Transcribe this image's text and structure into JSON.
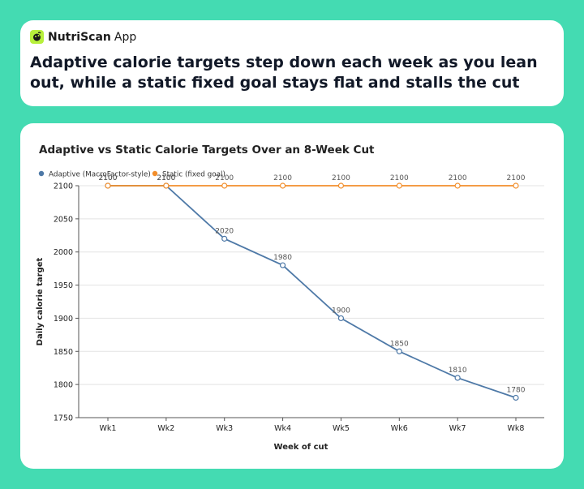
{
  "brand": {
    "name": "NutriScan",
    "suffix": "App",
    "accent": "#b7f03c"
  },
  "headline": "Adaptive calorie targets step down each week as you lean out, while a static fixed goal stays flat and stalls the cut",
  "chart_data": {
    "type": "line",
    "title": "Adaptive vs Static Calorie Targets Over an 8-Week Cut",
    "xlabel": "Week of cut",
    "ylabel": "Daily calorie target",
    "categories": [
      "Wk1",
      "Wk2",
      "Wk3",
      "Wk4",
      "Wk5",
      "Wk6",
      "Wk7",
      "Wk8"
    ],
    "ylim": [
      1750,
      2100
    ],
    "yticks": [
      1750,
      1800,
      1850,
      1900,
      1950,
      2000,
      2050,
      2100
    ],
    "grid": true,
    "legend": "top-left",
    "series": [
      {
        "name": "Adaptive (MacroFactor-style)",
        "color": "#4e79a7",
        "values": [
          2100,
          2100,
          2020,
          1980,
          1900,
          1850,
          1810,
          1780
        ]
      },
      {
        "name": "Static (fixed goal)",
        "color": "#f28e2b",
        "values": [
          2100,
          2100,
          2100,
          2100,
          2100,
          2100,
          2100,
          2100
        ]
      }
    ]
  }
}
